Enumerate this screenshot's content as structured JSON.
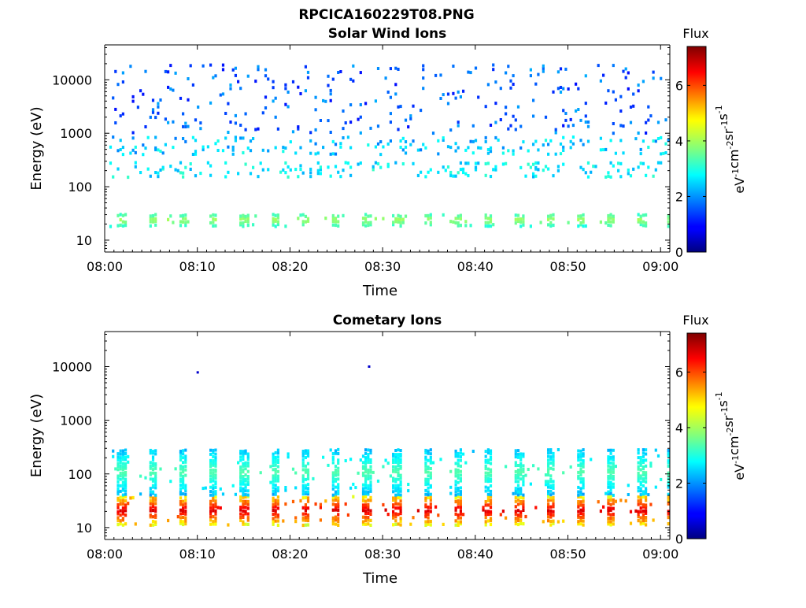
{
  "figure": {
    "title": "RPCICA160229T08.PNG"
  },
  "chart_data": [
    {
      "type": "heatmap",
      "title": "Solar Wind Ions",
      "xlabel": "Time",
      "ylabel": "Energy (eV)",
      "x_ticks": [
        "08:00",
        "08:10",
        "08:20",
        "08:30",
        "08:40",
        "08:50",
        "09:00"
      ],
      "x_range_min": [
        0,
        61
      ],
      "y_scale": "log",
      "y_ticks": [
        "10",
        "100",
        "1000",
        "10000"
      ],
      "y_range": [
        6,
        45000
      ],
      "colorbar": {
        "label": "Flux",
        "units": "eV-1cm-2sr-1s-1",
        "ticks": [
          "0",
          "2",
          "4",
          "6"
        ],
        "range": [
          0,
          7.4
        ],
        "colormap": "jet"
      },
      "bands": [
        {
          "energy_range_eV": [
            18,
            32
          ],
          "flux_range": [
            2.8,
            4.0
          ],
          "density": "periodic bursts every ~3 min"
        },
        {
          "energy_range_eV": [
            150,
            300
          ],
          "flux_range": [
            2.2,
            3.2
          ],
          "density": "scattered"
        },
        {
          "energy_range_eV": [
            400,
            900
          ],
          "flux_range": [
            1.8,
            3.0
          ],
          "density": "scattered"
        },
        {
          "energy_range_eV": [
            1000,
            20000
          ],
          "flux_range": [
            1.0,
            2.2
          ],
          "density": "sparse"
        }
      ]
    },
    {
      "type": "heatmap",
      "title": "Cometary Ions",
      "xlabel": "Time",
      "ylabel": "Energy (eV)",
      "x_ticks": [
        "08:00",
        "08:10",
        "08:20",
        "08:30",
        "08:40",
        "08:50",
        "09:00"
      ],
      "x_range_min": [
        0,
        61
      ],
      "y_scale": "log",
      "y_ticks": [
        "10",
        "100",
        "1000",
        "10000"
      ],
      "y_range": [
        6,
        45000
      ],
      "colorbar": {
        "label": "Flux",
        "units": "eV-1cm-2sr-1s-1",
        "ticks": [
          "0",
          "2",
          "4",
          "6"
        ],
        "range": [
          0,
          7.4
        ],
        "colormap": "jet"
      },
      "bands": [
        {
          "energy_range_eV": [
            11,
            40
          ],
          "flux_range": [
            4.0,
            6.8
          ],
          "density": "periodic bursts every ~3 min"
        },
        {
          "energy_range_eV": [
            40,
            300
          ],
          "flux_range": [
            2.0,
            3.4
          ],
          "density": "periodic with bursts"
        }
      ],
      "isolated_points": [
        {
          "time_min": 10,
          "energy_eV": 7800
        },
        {
          "time_min": 28.5,
          "energy_eV": 10000
        }
      ]
    }
  ]
}
